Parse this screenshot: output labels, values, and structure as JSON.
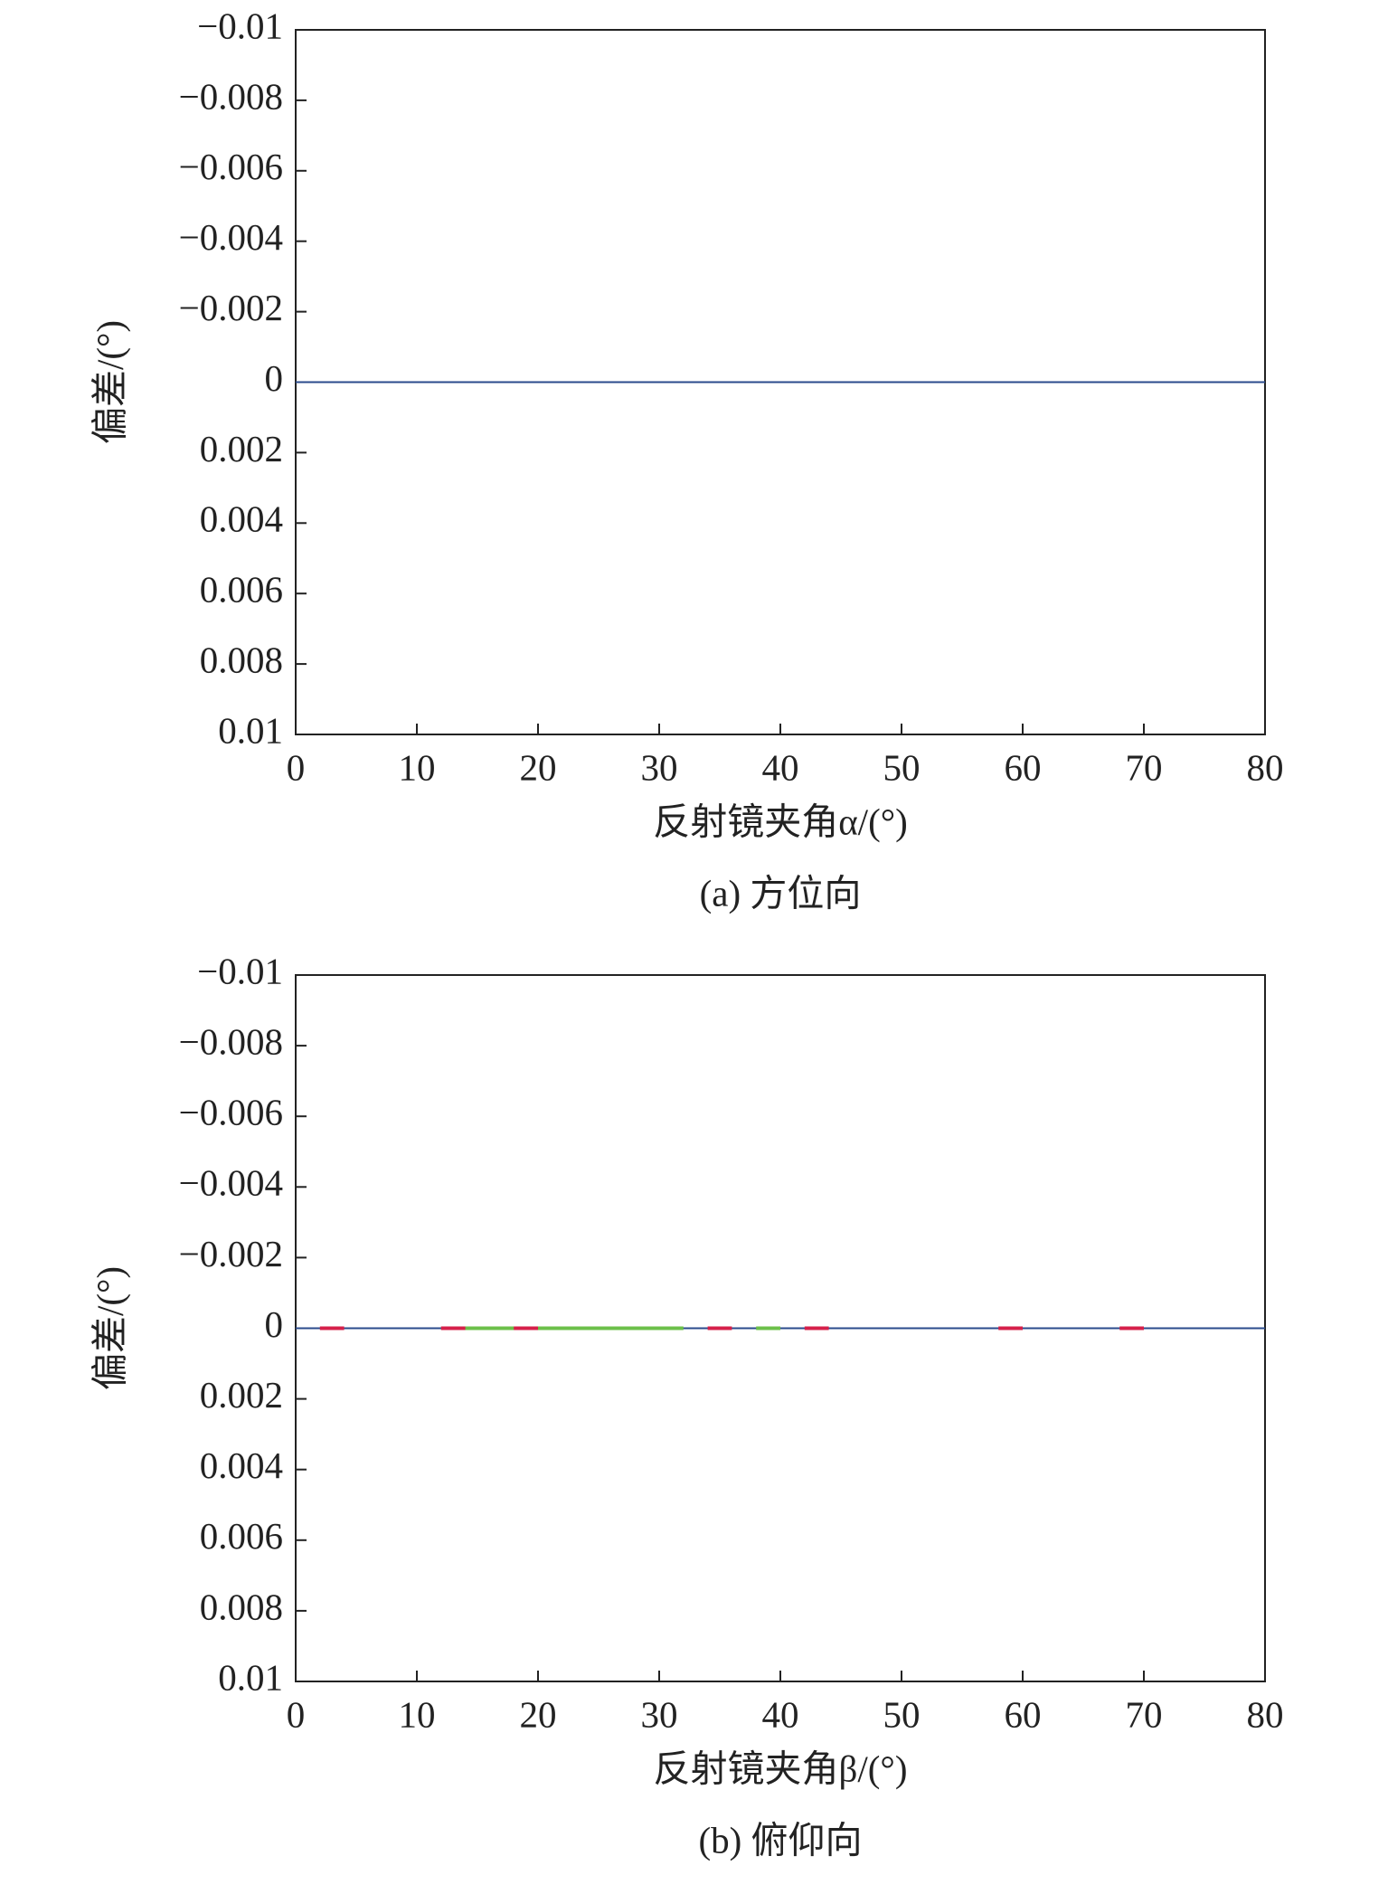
{
  "chart_data": [
    {
      "type": "line",
      "y_label": "偏差/(°)",
      "x_label": "反射镜夹角α/(°)",
      "caption": "(a) 方位向",
      "x": [
        0,
        80
      ],
      "series": [
        {
          "color": "#2b4b8c",
          "values": [
            0,
            0
          ]
        }
      ],
      "xlim": [
        0,
        80
      ],
      "xticks": [
        0,
        10,
        20,
        30,
        40,
        50,
        60,
        70,
        80
      ],
      "ylim": [
        -0.01,
        0.01
      ],
      "y_inverted": true,
      "yticks": [
        {
          "value": -0.01,
          "label": "−0.01"
        },
        {
          "value": -0.008,
          "label": "−0.008"
        },
        {
          "value": -0.006,
          "label": "−0.006"
        },
        {
          "value": -0.004,
          "label": "−0.004"
        },
        {
          "value": -0.002,
          "label": "−0.002"
        },
        0,
        0.002,
        0.004,
        0.006,
        0.008,
        0.01
      ]
    },
    {
      "type": "line",
      "y_label": "偏差/(°)",
      "x_label": "反射镜夹角β/(°)",
      "caption": "(b) 俯仰向",
      "x": [
        0,
        2,
        4,
        6,
        8,
        10,
        12,
        14,
        16,
        18,
        20,
        22,
        24,
        26,
        28,
        30,
        32,
        34,
        36,
        38,
        40,
        42,
        44,
        46,
        48,
        50,
        52,
        54,
        56,
        58,
        60,
        62,
        64,
        66,
        68,
        70,
        72,
        74,
        76,
        78,
        80
      ],
      "series": [
        {
          "color": "#2b4b8c",
          "values": [
            0,
            0,
            0,
            0,
            0,
            0,
            0,
            0,
            0,
            0,
            0,
            0,
            0,
            0,
            0,
            0,
            0,
            0,
            0,
            0,
            0,
            0,
            0,
            0,
            0,
            0,
            0,
            0,
            0,
            0,
            0,
            0,
            0,
            0,
            0,
            0,
            0,
            0,
            0,
            0,
            0
          ]
        },
        {
          "color": "#6cc04a",
          "values": [
            null,
            null,
            null,
            null,
            null,
            null,
            0,
            0,
            0,
            0,
            0,
            0,
            0,
            0,
            0,
            0,
            0,
            null,
            null,
            0,
            0,
            null,
            null,
            null,
            null,
            null,
            null,
            null,
            null,
            null,
            null,
            null,
            null,
            null,
            null,
            null,
            null,
            null,
            null,
            null,
            null
          ]
        },
        {
          "color": "#d6204a",
          "values": [
            null,
            0,
            0,
            null,
            null,
            null,
            0,
            0,
            null,
            0,
            0,
            null,
            null,
            null,
            null,
            null,
            null,
            0,
            0,
            null,
            null,
            0,
            0,
            null,
            null,
            null,
            null,
            null,
            null,
            0,
            0,
            null,
            null,
            null,
            0,
            0,
            null,
            null,
            null,
            null,
            null
          ]
        }
      ],
      "xlim": [
        0,
        80
      ],
      "xticks": [
        0,
        10,
        20,
        30,
        40,
        50,
        60,
        70,
        80
      ],
      "ylim": [
        -0.01,
        0.01
      ],
      "y_inverted": true,
      "yticks": [
        {
          "value": -0.01,
          "label": "−0.01"
        },
        {
          "value": -0.008,
          "label": "−0.008"
        },
        {
          "value": -0.006,
          "label": "−0.006"
        },
        {
          "value": -0.004,
          "label": "−0.004"
        },
        {
          "value": -0.002,
          "label": "−0.002"
        },
        0,
        0.002,
        0.004,
        0.006,
        0.008,
        0.01
      ]
    }
  ]
}
